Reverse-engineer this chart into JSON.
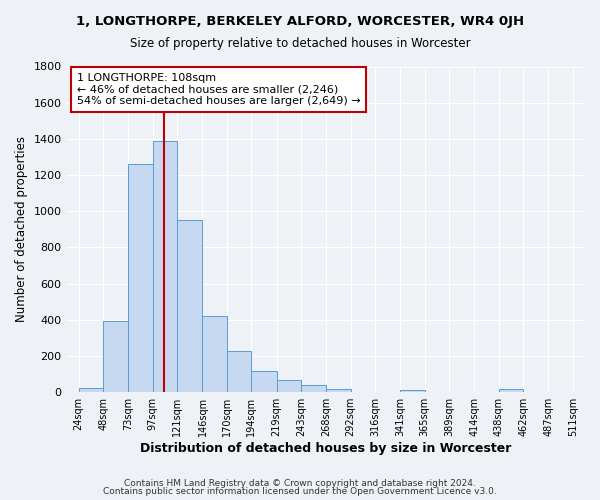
{
  "title": "1, LONGTHORPE, BERKELEY ALFORD, WORCESTER, WR4 0JH",
  "subtitle": "Size of property relative to detached houses in Worcester",
  "xlabel": "Distribution of detached houses by size in Worcester",
  "ylabel": "Number of detached properties",
  "bar_values": [
    25,
    395,
    1260,
    1390,
    950,
    420,
    230,
    115,
    65,
    40,
    15,
    0,
    0,
    10,
    0,
    0,
    0,
    15,
    0,
    0,
    0
  ],
  "bin_edges": [
    24,
    48,
    73,
    97,
    121,
    146,
    170,
    194,
    219,
    243,
    268,
    292,
    316,
    341,
    365,
    389,
    414,
    438,
    462,
    487,
    511
  ],
  "tick_labels": [
    "24sqm",
    "48sqm",
    "73sqm",
    "97sqm",
    "121sqm",
    "146sqm",
    "170sqm",
    "194sqm",
    "219sqm",
    "243sqm",
    "268sqm",
    "292sqm",
    "316sqm",
    "341sqm",
    "365sqm",
    "389sqm",
    "414sqm",
    "438sqm",
    "462sqm",
    "487sqm",
    "511sqm"
  ],
  "bar_color": "#c6d9f0",
  "bar_edge_color": "#5b9bd5",
  "vline_color": "#c00000",
  "property_size": 108,
  "annotation_title": "1 LONGTHORPE: 108sqm",
  "annotation_line1": "← 46% of detached houses are smaller (2,246)",
  "annotation_line2": "54% of semi-detached houses are larger (2,649) →",
  "annotation_box_color": "#c00000",
  "ylim": [
    0,
    1800
  ],
  "yticks": [
    0,
    200,
    400,
    600,
    800,
    1000,
    1200,
    1400,
    1600,
    1800
  ],
  "footer1": "Contains HM Land Registry data © Crown copyright and database right 2024.",
  "footer2": "Contains public sector information licensed under the Open Government Licence v3.0.",
  "background_color": "#eef2f7",
  "grid_color": "#ffffff"
}
